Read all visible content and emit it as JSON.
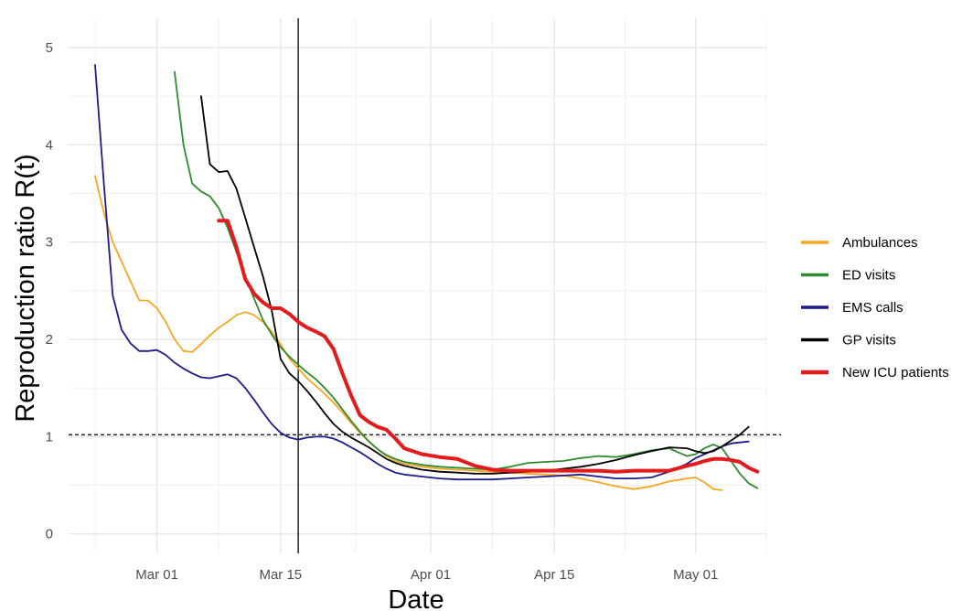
{
  "chart_data": {
    "type": "line",
    "xlabel": "Date",
    "ylabel": "Reproduction ratio R(t)",
    "x_axis": {
      "type": "date",
      "min": "2020-02-20",
      "max": "2020-05-09",
      "ticks": [
        {
          "date": "2020-03-01",
          "label": "Mar 01"
        },
        {
          "date": "2020-03-15",
          "label": "Mar 15"
        },
        {
          "date": "2020-04-01",
          "label": "Apr 01"
        },
        {
          "date": "2020-04-15",
          "label": "Apr 15"
        },
        {
          "date": "2020-05-01",
          "label": "May 01"
        }
      ]
    },
    "y_axis": {
      "min": -0.2,
      "max": 5.3,
      "ticks": [
        0,
        1,
        2,
        3,
        4,
        5
      ],
      "tick_labels": [
        "0",
        "1",
        "2",
        "3",
        "4",
        "5"
      ]
    },
    "grid": true,
    "legend_position": "right",
    "reference_lines": {
      "horizontal": {
        "y": 1.02,
        "style": "dashed"
      },
      "vertical": {
        "date": "2020-03-17",
        "style": "solid"
      }
    },
    "series": [
      {
        "name": "Ambulances",
        "color": "#f5a623",
        "width": 1.8,
        "points": [
          [
            "2020-02-23",
            3.68
          ],
          [
            "2020-02-24",
            3.3
          ],
          [
            "2020-02-25",
            3.0
          ],
          [
            "2020-02-26",
            2.8
          ],
          [
            "2020-02-27",
            2.6
          ],
          [
            "2020-02-28",
            2.4
          ],
          [
            "2020-02-29",
            2.4
          ],
          [
            "2020-03-01",
            2.32
          ],
          [
            "2020-03-02",
            2.18
          ],
          [
            "2020-03-03",
            2.0
          ],
          [
            "2020-03-04",
            1.88
          ],
          [
            "2020-03-05",
            1.87
          ],
          [
            "2020-03-06",
            1.95
          ],
          [
            "2020-03-07",
            2.04
          ],
          [
            "2020-03-08",
            2.12
          ],
          [
            "2020-03-09",
            2.18
          ],
          [
            "2020-03-10",
            2.25
          ],
          [
            "2020-03-11",
            2.28
          ],
          [
            "2020-03-12",
            2.25
          ],
          [
            "2020-03-13",
            2.18
          ],
          [
            "2020-03-14",
            2.08
          ],
          [
            "2020-03-15",
            1.95
          ],
          [
            "2020-03-16",
            1.8
          ],
          [
            "2020-03-17",
            1.7
          ],
          [
            "2020-03-18",
            1.6
          ],
          [
            "2020-03-19",
            1.52
          ],
          [
            "2020-03-20",
            1.44
          ],
          [
            "2020-03-21",
            1.35
          ],
          [
            "2020-03-22",
            1.25
          ],
          [
            "2020-03-23",
            1.14
          ],
          [
            "2020-03-24",
            1.04
          ],
          [
            "2020-03-25",
            0.95
          ],
          [
            "2020-03-26",
            0.87
          ],
          [
            "2020-03-27",
            0.8
          ],
          [
            "2020-03-28",
            0.75
          ],
          [
            "2020-03-29",
            0.72
          ],
          [
            "2020-03-31",
            0.69
          ],
          [
            "2020-04-02",
            0.67
          ],
          [
            "2020-04-04",
            0.66
          ],
          [
            "2020-04-06",
            0.65
          ],
          [
            "2020-04-08",
            0.64
          ],
          [
            "2020-04-10",
            0.63
          ],
          [
            "2020-04-12",
            0.62
          ],
          [
            "2020-04-14",
            0.61
          ],
          [
            "2020-04-16",
            0.6
          ],
          [
            "2020-04-18",
            0.57
          ],
          [
            "2020-04-20",
            0.53
          ],
          [
            "2020-04-22",
            0.49
          ],
          [
            "2020-04-24",
            0.46
          ],
          [
            "2020-04-26",
            0.49
          ],
          [
            "2020-04-28",
            0.54
          ],
          [
            "2020-04-30",
            0.57
          ],
          [
            "2020-05-01",
            0.58
          ],
          [
            "2020-05-02",
            0.53
          ],
          [
            "2020-05-03",
            0.46
          ],
          [
            "2020-05-04",
            0.45
          ]
        ]
      },
      {
        "name": "ED visits",
        "color": "#2e8b2e",
        "width": 1.8,
        "points": [
          [
            "2020-03-03",
            4.75
          ],
          [
            "2020-03-04",
            4.0
          ],
          [
            "2020-03-05",
            3.6
          ],
          [
            "2020-03-06",
            3.52
          ],
          [
            "2020-03-07",
            3.47
          ],
          [
            "2020-03-08",
            3.35
          ],
          [
            "2020-03-09",
            3.15
          ],
          [
            "2020-03-10",
            2.9
          ],
          [
            "2020-03-11",
            2.65
          ],
          [
            "2020-03-12",
            2.42
          ],
          [
            "2020-03-13",
            2.2
          ],
          [
            "2020-03-14",
            2.05
          ],
          [
            "2020-03-15",
            1.92
          ],
          [
            "2020-03-16",
            1.82
          ],
          [
            "2020-03-17",
            1.74
          ],
          [
            "2020-03-18",
            1.66
          ],
          [
            "2020-03-19",
            1.59
          ],
          [
            "2020-03-20",
            1.5
          ],
          [
            "2020-03-21",
            1.4
          ],
          [
            "2020-03-22",
            1.28
          ],
          [
            "2020-03-23",
            1.16
          ],
          [
            "2020-03-24",
            1.05
          ],
          [
            "2020-03-25",
            0.95
          ],
          [
            "2020-03-26",
            0.87
          ],
          [
            "2020-03-27",
            0.81
          ],
          [
            "2020-03-28",
            0.77
          ],
          [
            "2020-03-29",
            0.74
          ],
          [
            "2020-03-31",
            0.71
          ],
          [
            "2020-04-02",
            0.69
          ],
          [
            "2020-04-04",
            0.68
          ],
          [
            "2020-04-06",
            0.67
          ],
          [
            "2020-04-08",
            0.66
          ],
          [
            "2020-04-10",
            0.69
          ],
          [
            "2020-04-12",
            0.73
          ],
          [
            "2020-04-14",
            0.74
          ],
          [
            "2020-04-16",
            0.75
          ],
          [
            "2020-04-18",
            0.78
          ],
          [
            "2020-04-20",
            0.8
          ],
          [
            "2020-04-22",
            0.79
          ],
          [
            "2020-04-24",
            0.82
          ],
          [
            "2020-04-26",
            0.86
          ],
          [
            "2020-04-28",
            0.88
          ],
          [
            "2020-04-29",
            0.84
          ],
          [
            "2020-04-30",
            0.8
          ],
          [
            "2020-05-01",
            0.82
          ],
          [
            "2020-05-02",
            0.88
          ],
          [
            "2020-05-03",
            0.92
          ],
          [
            "2020-05-04",
            0.88
          ],
          [
            "2020-05-05",
            0.75
          ],
          [
            "2020-05-06",
            0.62
          ],
          [
            "2020-05-07",
            0.52
          ],
          [
            "2020-05-08",
            0.47
          ]
        ]
      },
      {
        "name": "EMS calls",
        "color": "#1c1c8c",
        "width": 1.8,
        "points": [
          [
            "2020-02-23",
            4.82
          ],
          [
            "2020-02-24",
            3.6
          ],
          [
            "2020-02-25",
            2.45
          ],
          [
            "2020-02-26",
            2.1
          ],
          [
            "2020-02-27",
            1.96
          ],
          [
            "2020-02-28",
            1.88
          ],
          [
            "2020-02-29",
            1.88
          ],
          [
            "2020-03-01",
            1.89
          ],
          [
            "2020-03-02",
            1.84
          ],
          [
            "2020-03-03",
            1.76
          ],
          [
            "2020-03-04",
            1.7
          ],
          [
            "2020-03-05",
            1.65
          ],
          [
            "2020-03-06",
            1.61
          ],
          [
            "2020-03-07",
            1.6
          ],
          [
            "2020-03-08",
            1.62
          ],
          [
            "2020-03-09",
            1.64
          ],
          [
            "2020-03-10",
            1.6
          ],
          [
            "2020-03-11",
            1.5
          ],
          [
            "2020-03-12",
            1.38
          ],
          [
            "2020-03-13",
            1.25
          ],
          [
            "2020-03-14",
            1.13
          ],
          [
            "2020-03-15",
            1.04
          ],
          [
            "2020-03-16",
            0.99
          ],
          [
            "2020-03-17",
            0.97
          ],
          [
            "2020-03-18",
            0.99
          ],
          [
            "2020-03-19",
            1.0
          ],
          [
            "2020-03-20",
            1.0
          ],
          [
            "2020-03-21",
            0.98
          ],
          [
            "2020-03-22",
            0.94
          ],
          [
            "2020-03-23",
            0.89
          ],
          [
            "2020-03-24",
            0.84
          ],
          [
            "2020-03-25",
            0.78
          ],
          [
            "2020-03-26",
            0.72
          ],
          [
            "2020-03-27",
            0.67
          ],
          [
            "2020-03-28",
            0.63
          ],
          [
            "2020-03-29",
            0.61
          ],
          [
            "2020-03-31",
            0.59
          ],
          [
            "2020-04-02",
            0.57
          ],
          [
            "2020-04-04",
            0.56
          ],
          [
            "2020-04-06",
            0.56
          ],
          [
            "2020-04-08",
            0.56
          ],
          [
            "2020-04-10",
            0.57
          ],
          [
            "2020-04-12",
            0.58
          ],
          [
            "2020-04-14",
            0.59
          ],
          [
            "2020-04-16",
            0.6
          ],
          [
            "2020-04-18",
            0.61
          ],
          [
            "2020-04-20",
            0.59
          ],
          [
            "2020-04-22",
            0.57
          ],
          [
            "2020-04-24",
            0.57
          ],
          [
            "2020-04-26",
            0.58
          ],
          [
            "2020-04-28",
            0.64
          ],
          [
            "2020-04-30",
            0.72
          ],
          [
            "2020-05-01",
            0.78
          ],
          [
            "2020-05-02",
            0.82
          ],
          [
            "2020-05-03",
            0.86
          ],
          [
            "2020-05-04",
            0.9
          ],
          [
            "2020-05-05",
            0.93
          ],
          [
            "2020-05-06",
            0.94
          ],
          [
            "2020-05-07",
            0.95
          ]
        ]
      },
      {
        "name": "GP visits",
        "color": "#000000",
        "width": 1.8,
        "points": [
          [
            "2020-03-06",
            4.5
          ],
          [
            "2020-03-07",
            3.8
          ],
          [
            "2020-03-08",
            3.72
          ],
          [
            "2020-03-09",
            3.73
          ],
          [
            "2020-03-10",
            3.55
          ],
          [
            "2020-03-11",
            3.25
          ],
          [
            "2020-03-12",
            2.95
          ],
          [
            "2020-03-13",
            2.65
          ],
          [
            "2020-03-14",
            2.3
          ],
          [
            "2020-03-15",
            1.8
          ],
          [
            "2020-03-16",
            1.65
          ],
          [
            "2020-03-17",
            1.57
          ],
          [
            "2020-03-18",
            1.47
          ],
          [
            "2020-03-19",
            1.36
          ],
          [
            "2020-03-20",
            1.24
          ],
          [
            "2020-03-21",
            1.13
          ],
          [
            "2020-03-22",
            1.05
          ],
          [
            "2020-03-23",
            0.99
          ],
          [
            "2020-03-24",
            0.94
          ],
          [
            "2020-03-25",
            0.89
          ],
          [
            "2020-03-26",
            0.83
          ],
          [
            "2020-03-27",
            0.77
          ],
          [
            "2020-03-28",
            0.73
          ],
          [
            "2020-03-29",
            0.7
          ],
          [
            "2020-03-31",
            0.66
          ],
          [
            "2020-04-02",
            0.64
          ],
          [
            "2020-04-04",
            0.63
          ],
          [
            "2020-04-06",
            0.62
          ],
          [
            "2020-04-08",
            0.62
          ],
          [
            "2020-04-10",
            0.63
          ],
          [
            "2020-04-12",
            0.64
          ],
          [
            "2020-04-14",
            0.65
          ],
          [
            "2020-04-16",
            0.67
          ],
          [
            "2020-04-18",
            0.69
          ],
          [
            "2020-04-20",
            0.72
          ],
          [
            "2020-04-22",
            0.76
          ],
          [
            "2020-04-24",
            0.81
          ],
          [
            "2020-04-26",
            0.85
          ],
          [
            "2020-04-28",
            0.89
          ],
          [
            "2020-04-30",
            0.88
          ],
          [
            "2020-05-01",
            0.85
          ],
          [
            "2020-05-02",
            0.83
          ],
          [
            "2020-05-03",
            0.85
          ],
          [
            "2020-05-04",
            0.9
          ],
          [
            "2020-05-05",
            0.96
          ],
          [
            "2020-05-06",
            1.02
          ],
          [
            "2020-05-07",
            1.1
          ]
        ]
      },
      {
        "name": "New ICU patients",
        "color": "#e41a1c",
        "width": 4,
        "points": [
          [
            "2020-03-08",
            3.22
          ],
          [
            "2020-03-09",
            3.22
          ],
          [
            "2020-03-10",
            2.95
          ],
          [
            "2020-03-11",
            2.62
          ],
          [
            "2020-03-12",
            2.47
          ],
          [
            "2020-03-13",
            2.38
          ],
          [
            "2020-03-14",
            2.32
          ],
          [
            "2020-03-15",
            2.32
          ],
          [
            "2020-03-16",
            2.26
          ],
          [
            "2020-03-17",
            2.18
          ],
          [
            "2020-03-18",
            2.12
          ],
          [
            "2020-03-19",
            2.08
          ],
          [
            "2020-03-20",
            2.03
          ],
          [
            "2020-03-21",
            1.9
          ],
          [
            "2020-03-22",
            1.65
          ],
          [
            "2020-03-23",
            1.42
          ],
          [
            "2020-03-24",
            1.22
          ],
          [
            "2020-03-25",
            1.15
          ],
          [
            "2020-03-26",
            1.1
          ],
          [
            "2020-03-27",
            1.07
          ],
          [
            "2020-03-28",
            0.98
          ],
          [
            "2020-03-29",
            0.88
          ],
          [
            "2020-03-31",
            0.82
          ],
          [
            "2020-04-02",
            0.79
          ],
          [
            "2020-04-04",
            0.77
          ],
          [
            "2020-04-06",
            0.7
          ],
          [
            "2020-04-08",
            0.66
          ],
          [
            "2020-04-10",
            0.65
          ],
          [
            "2020-04-12",
            0.65
          ],
          [
            "2020-04-14",
            0.65
          ],
          [
            "2020-04-16",
            0.65
          ],
          [
            "2020-04-18",
            0.65
          ],
          [
            "2020-04-20",
            0.65
          ],
          [
            "2020-04-22",
            0.64
          ],
          [
            "2020-04-24",
            0.65
          ],
          [
            "2020-04-26",
            0.65
          ],
          [
            "2020-04-28",
            0.65
          ],
          [
            "2020-04-30",
            0.7
          ],
          [
            "2020-05-01",
            0.72
          ],
          [
            "2020-05-02",
            0.75
          ],
          [
            "2020-05-03",
            0.77
          ],
          [
            "2020-05-04",
            0.77
          ],
          [
            "2020-05-05",
            0.76
          ],
          [
            "2020-05-06",
            0.74
          ],
          [
            "2020-05-07",
            0.68
          ],
          [
            "2020-05-08",
            0.64
          ]
        ]
      }
    ]
  }
}
